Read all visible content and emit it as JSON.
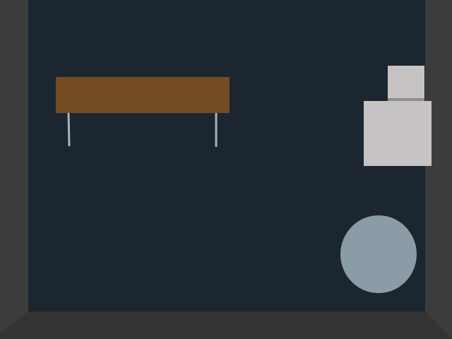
{
  "scene": {
    "background_wall": "#1b2631",
    "side_walls": "#3c3c3c",
    "floor": "#333333",
    "table": {
      "top_color": "#744e22",
      "leg_color": "#a9b2b9"
    },
    "cabinet": {
      "color": "#c6c3c2",
      "seam_color": "#8e8e8e"
    },
    "ball": {
      "color": "#8c9ca7"
    }
  }
}
